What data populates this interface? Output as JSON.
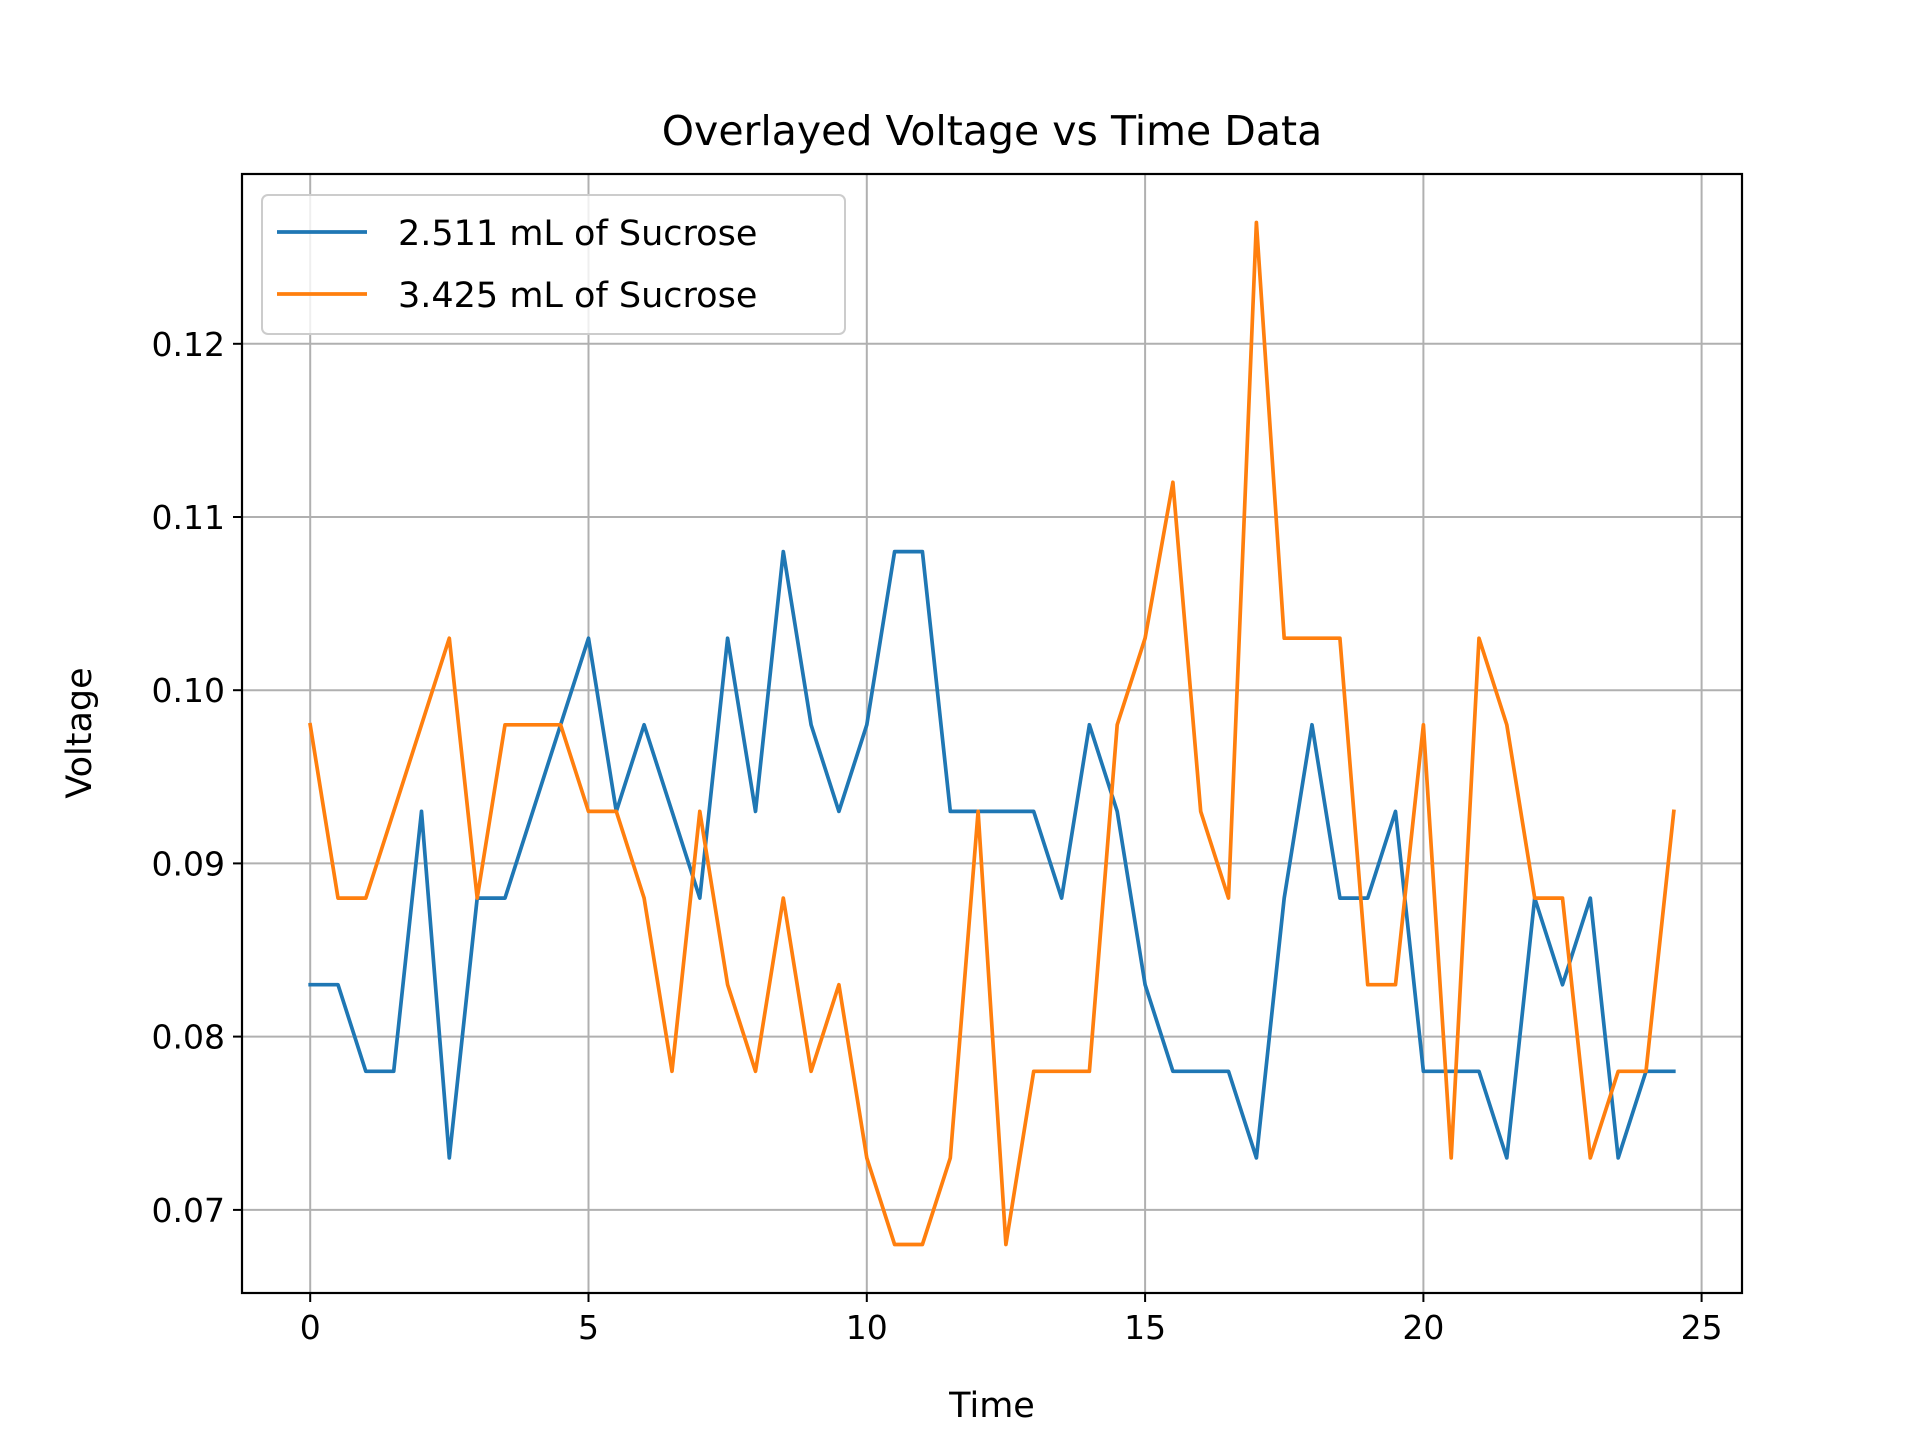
{
  "chart_data": {
    "type": "line",
    "title": "Overlayed Voltage vs Time Data",
    "xlabel": "Time",
    "ylabel": "Voltage",
    "xlim": [
      -1.225,
      25.725
    ],
    "ylim": [
      0.0652,
      0.1298
    ],
    "xticks": [
      0,
      5,
      10,
      15,
      20,
      25
    ],
    "xtick_labels": [
      "0",
      "5",
      "10",
      "15",
      "20",
      "25"
    ],
    "yticks": [
      0.07,
      0.08,
      0.09,
      0.1,
      0.11,
      0.12
    ],
    "ytick_labels": [
      "0.07",
      "0.08",
      "0.09",
      "0.10",
      "0.11",
      "0.12"
    ],
    "grid": true,
    "legend_position": "top-left",
    "x": [
      0,
      0.5,
      1,
      1.5,
      2,
      2.5,
      3,
      3.5,
      4,
      4.5,
      5,
      5.5,
      6,
      6.5,
      7,
      7.5,
      8,
      8.5,
      9,
      9.5,
      10,
      10.5,
      11,
      11.5,
      12,
      12.5,
      13,
      13.5,
      14,
      14.5,
      15,
      15.5,
      16,
      16.5,
      17,
      17.5,
      18,
      18.5,
      19,
      19.5,
      20,
      20.5,
      21,
      21.5,
      22,
      22.5,
      23,
      23.5,
      24,
      24.5
    ],
    "series": [
      {
        "name": "2.511 mL of Sucrose",
        "color": "#1f77b4",
        "values": [
          0.083,
          0.083,
          0.078,
          0.078,
          0.093,
          0.073,
          0.088,
          0.088,
          0.093,
          0.098,
          0.103,
          0.093,
          0.098,
          0.093,
          0.088,
          0.103,
          0.093,
          0.108,
          0.098,
          0.093,
          0.098,
          0.108,
          0.108,
          0.093,
          0.093,
          0.093,
          0.093,
          0.088,
          0.098,
          0.093,
          0.083,
          0.078,
          0.078,
          0.078,
          0.073,
          0.088,
          0.098,
          0.088,
          0.088,
          0.093,
          0.078,
          0.078,
          0.078,
          0.073,
          0.088,
          0.083,
          0.088,
          0.073,
          0.078,
          0.078
        ]
      },
      {
        "name": "3.425 mL of Sucrose",
        "color": "#ff7f0e",
        "values": [
          0.098,
          0.088,
          0.088,
          0.093,
          0.098,
          0.103,
          0.088,
          0.098,
          0.098,
          0.098,
          0.093,
          0.093,
          0.088,
          0.078,
          0.093,
          0.083,
          0.078,
          0.088,
          0.078,
          0.083,
          0.073,
          0.068,
          0.068,
          0.073,
          0.093,
          0.068,
          0.078,
          0.078,
          0.078,
          0.098,
          0.103,
          0.112,
          0.093,
          0.088,
          0.127,
          0.103,
          0.103,
          0.103,
          0.083,
          0.083,
          0.098,
          0.073,
          0.103,
          0.098,
          0.088,
          0.088,
          0.073,
          0.078,
          0.078,
          0.093
        ]
      }
    ]
  }
}
